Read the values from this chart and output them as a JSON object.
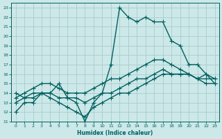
{
  "xlabel": "Humidex (Indice chaleur)",
  "xlim": [
    -0.5,
    23.5
  ],
  "ylim": [
    11,
    23.5
  ],
  "yticks": [
    11,
    12,
    13,
    14,
    15,
    16,
    17,
    18,
    19,
    20,
    21,
    22,
    23
  ],
  "xticks": [
    0,
    1,
    2,
    3,
    4,
    5,
    6,
    7,
    8,
    9,
    10,
    11,
    12,
    13,
    14,
    15,
    16,
    17,
    18,
    19,
    20,
    21,
    22,
    23
  ],
  "bg_color": "#cce8e8",
  "grid_color": "#aacccc",
  "line_color": "#005f5f",
  "line_width": 1.0,
  "marker": "+",
  "marker_size": 4,
  "lines": [
    [
      12,
      13,
      13,
      14,
      14,
      15,
      13.5,
      13,
      11,
      13,
      14,
      17,
      23,
      22,
      21.5,
      22,
      21.5,
      21.5,
      19.5,
      19,
      17,
      17,
      16,
      15
    ],
    [
      13,
      13.5,
      13.5,
      14,
      13.5,
      13,
      12.5,
      12,
      11.5,
      12.5,
      13,
      13.5,
      14,
      14,
      14.5,
      15,
      15.5,
      16,
      16,
      16,
      16,
      15.5,
      15,
      15
    ],
    [
      14,
      13.5,
      14,
      14,
      14,
      13.5,
      13.5,
      13.5,
      13,
      13.5,
      14,
      14,
      14.5,
      15,
      15.5,
      15.5,
      16,
      16.5,
      16,
      16,
      16,
      15.5,
      15.5,
      15.5
    ],
    [
      13.5,
      14,
      14.5,
      15,
      15,
      14.5,
      14,
      14,
      14,
      14.5,
      15,
      15.5,
      15.5,
      16,
      16.5,
      17,
      17.5,
      17.5,
      17,
      16.5,
      16,
      15.5,
      16,
      15.5
    ]
  ]
}
